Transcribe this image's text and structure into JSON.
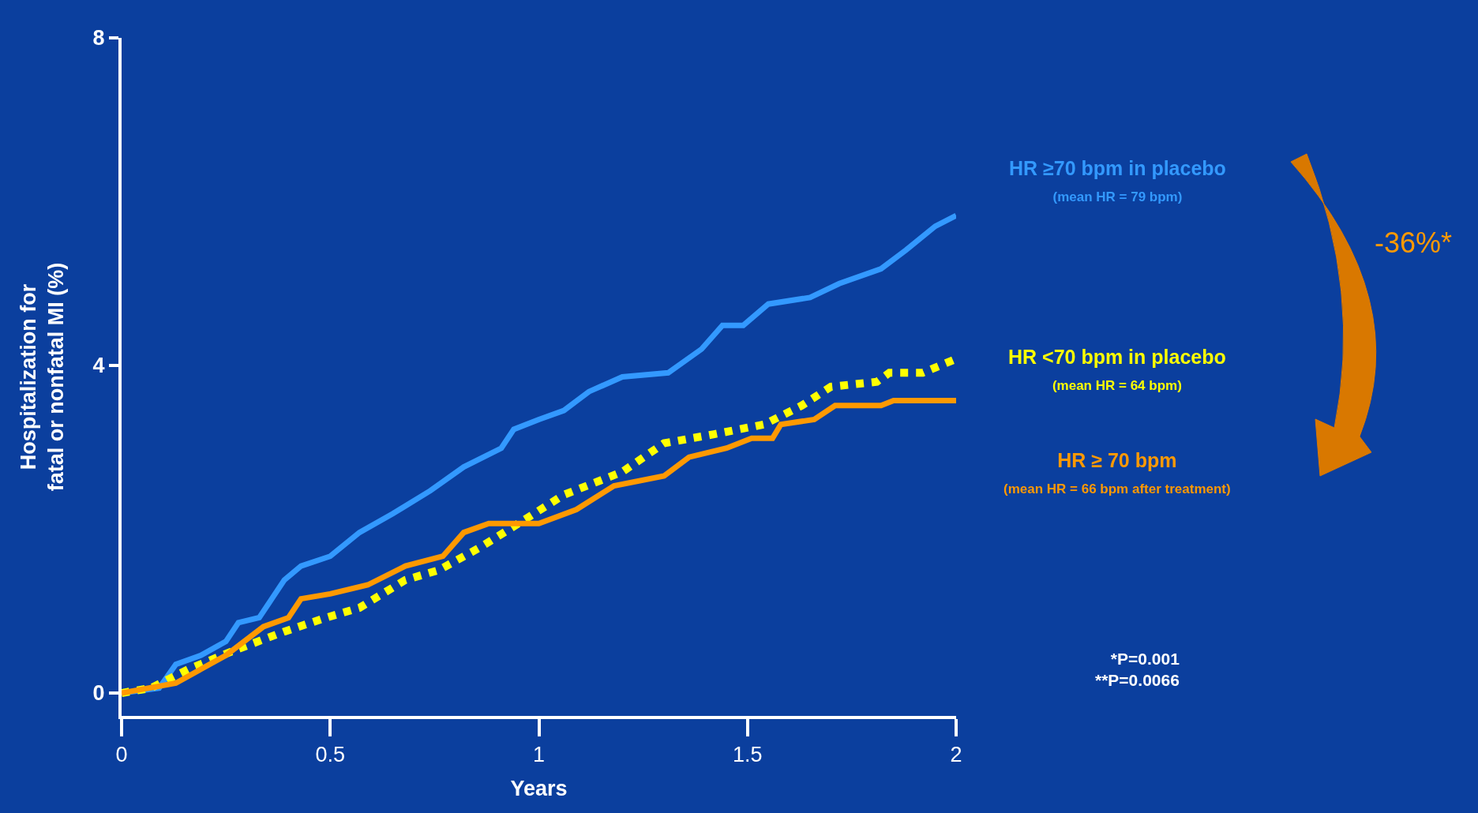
{
  "chart_data": {
    "type": "line",
    "xlabel": "Years",
    "ylabel": "Hospitalization for\nfatal or nonfatal MI (%)",
    "xlim": [
      0,
      2
    ],
    "xticks": [
      0,
      0.5,
      1,
      1.5,
      2
    ],
    "ylim": [
      -0.28,
      8
    ],
    "yticks": [
      0,
      4,
      8
    ],
    "grid": false,
    "legend": false,
    "series": [
      {
        "name": "HR ≥70 bpm in placebo",
        "color": "#3399ff",
        "line_style": "solid",
        "x": [
          0,
          0.09,
          0.13,
          0.19,
          0.25,
          0.28,
          0.33,
          0.36,
          0.39,
          0.43,
          0.5,
          0.57,
          0.65,
          0.74,
          0.82,
          0.91,
          0.94,
          1.0,
          1.06,
          1.12,
          1.2,
          1.31,
          1.39,
          1.44,
          1.49,
          1.55,
          1.65,
          1.72,
          1.82,
          1.88,
          1.95,
          2.0
        ],
        "values": [
          0,
          0.06,
          0.35,
          0.46,
          0.63,
          0.86,
          0.92,
          1.15,
          1.38,
          1.55,
          1.67,
          1.96,
          2.19,
          2.47,
          2.76,
          2.99,
          3.22,
          3.34,
          3.45,
          3.68,
          3.86,
          3.91,
          4.2,
          4.49,
          4.49,
          4.75,
          4.83,
          5.0,
          5.18,
          5.41,
          5.7,
          5.83
        ]
      },
      {
        "name": "HR <70 bpm in placebo",
        "color": "#ffff00",
        "line_style": "dotted",
        "x": [
          0,
          0.07,
          0.16,
          0.27,
          0.39,
          0.49,
          0.57,
          0.68,
          0.76,
          0.86,
          0.97,
          1.06,
          1.2,
          1.3,
          1.42,
          1.54,
          1.63,
          1.7,
          1.81,
          1.84,
          1.92,
          2.0
        ],
        "values": [
          0,
          0.06,
          0.29,
          0.52,
          0.75,
          0.92,
          1.04,
          1.38,
          1.5,
          1.78,
          2.13,
          2.42,
          2.7,
          3.05,
          3.16,
          3.28,
          3.51,
          3.74,
          3.8,
          3.91,
          3.91,
          4.08
        ]
      },
      {
        "name": "HR ≥ 70 bpm",
        "color": "#ff9900",
        "line_style": "solid",
        "x": [
          0,
          0.13,
          0.25,
          0.34,
          0.4,
          0.43,
          0.5,
          0.59,
          0.68,
          0.77,
          0.82,
          0.88,
          1.0,
          1.09,
          1.18,
          1.3,
          1.36,
          1.45,
          1.51,
          1.56,
          1.58,
          1.66,
          1.71,
          1.82,
          1.85,
          2.0
        ],
        "values": [
          0,
          0.12,
          0.46,
          0.81,
          0.92,
          1.15,
          1.21,
          1.32,
          1.55,
          1.67,
          1.96,
          2.07,
          2.07,
          2.24,
          2.53,
          2.65,
          2.88,
          2.99,
          3.11,
          3.11,
          3.28,
          3.34,
          3.51,
          3.51,
          3.57,
          3.57
        ]
      }
    ],
    "annotations": [
      "(mean HR = 79 bpm)",
      "(mean HR = 64 bpm)",
      "(mean HR = 66 bpm after treatment)",
      "-36%*",
      "*P=0.001\n**P=0.0066"
    ]
  }
}
